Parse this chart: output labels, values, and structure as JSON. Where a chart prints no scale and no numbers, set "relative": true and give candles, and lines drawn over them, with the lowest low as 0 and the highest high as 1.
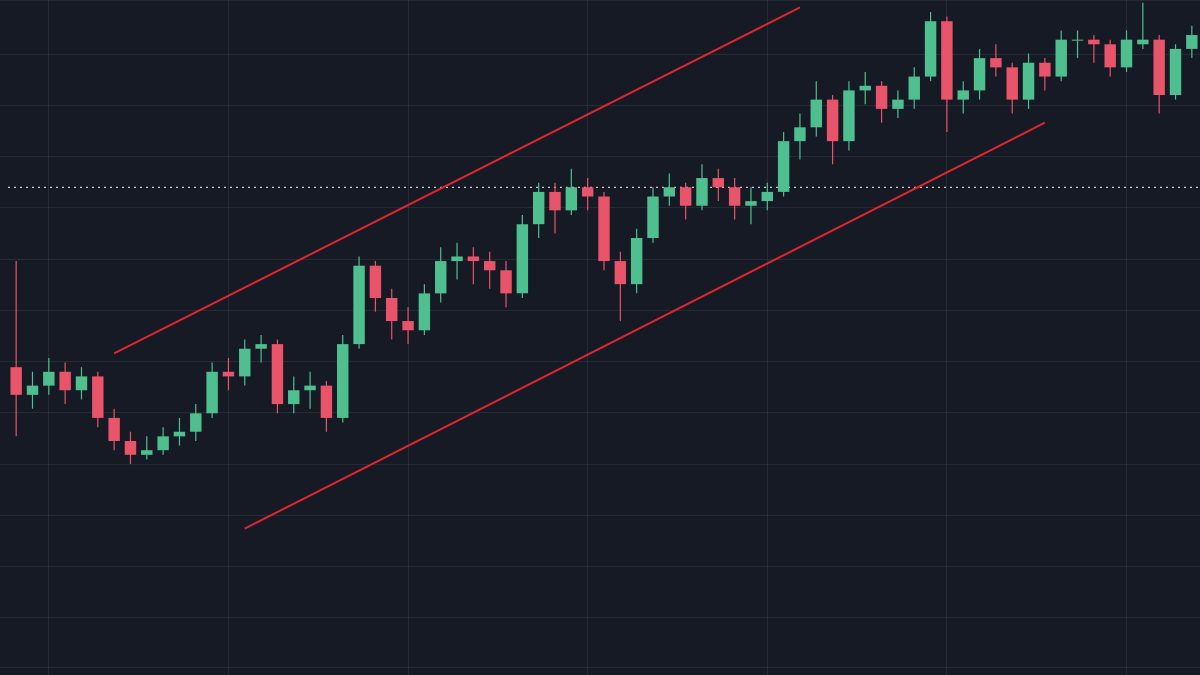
{
  "chart_data": {
    "type": "candlestick",
    "relative": true,
    "grid": true,
    "categories": [
      null,
      null,
      null,
      null,
      null,
      null,
      null,
      null,
      null,
      null,
      null,
      null,
      null,
      null,
      null,
      null,
      null,
      null,
      null,
      null,
      null,
      null,
      null,
      null,
      null,
      null,
      null,
      null,
      null,
      null,
      null,
      null,
      null,
      null,
      null,
      null,
      null,
      null,
      null,
      null,
      null,
      null,
      null,
      null,
      null,
      null,
      null,
      null,
      null,
      null,
      null,
      null,
      null,
      null,
      null,
      null,
      null,
      null,
      null,
      null,
      null,
      null,
      null,
      null,
      null,
      null,
      null,
      null,
      null,
      null,
      null,
      null,
      null
    ],
    "ohlc": [
      [
        0.21,
        0.44,
        0.06,
        0.15
      ],
      [
        0.15,
        0.2,
        0.12,
        0.17
      ],
      [
        0.17,
        0.23,
        0.15,
        0.2
      ],
      [
        0.2,
        0.22,
        0.13,
        0.16
      ],
      [
        0.16,
        0.21,
        0.14,
        0.19
      ],
      [
        0.19,
        0.2,
        0.08,
        0.1
      ],
      [
        0.1,
        0.12,
        0.03,
        0.05
      ],
      [
        0.05,
        0.07,
        0.0,
        0.02
      ],
      [
        0.02,
        0.06,
        0.01,
        0.03
      ],
      [
        0.03,
        0.08,
        0.02,
        0.06
      ],
      [
        0.06,
        0.1,
        0.04,
        0.07
      ],
      [
        0.07,
        0.13,
        0.05,
        0.11
      ],
      [
        0.11,
        0.22,
        0.1,
        0.2
      ],
      [
        0.2,
        0.23,
        0.16,
        0.19
      ],
      [
        0.19,
        0.27,
        0.17,
        0.25
      ],
      [
        0.25,
        0.28,
        0.22,
        0.26
      ],
      [
        0.26,
        0.27,
        0.11,
        0.13
      ],
      [
        0.13,
        0.19,
        0.11,
        0.16
      ],
      [
        0.16,
        0.2,
        0.12,
        0.17
      ],
      [
        0.17,
        0.18,
        0.07,
        0.1
      ],
      [
        0.1,
        0.28,
        0.09,
        0.26
      ],
      [
        0.26,
        0.45,
        0.25,
        0.43
      ],
      [
        0.43,
        0.44,
        0.33,
        0.36
      ],
      [
        0.36,
        0.38,
        0.27,
        0.31
      ],
      [
        0.31,
        0.34,
        0.26,
        0.29
      ],
      [
        0.29,
        0.39,
        0.28,
        0.37
      ],
      [
        0.37,
        0.47,
        0.35,
        0.44
      ],
      [
        0.44,
        0.48,
        0.4,
        0.45
      ],
      [
        0.45,
        0.47,
        0.39,
        0.44
      ],
      [
        0.44,
        0.46,
        0.38,
        0.42
      ],
      [
        0.42,
        0.44,
        0.34,
        0.37
      ],
      [
        0.37,
        0.54,
        0.36,
        0.52
      ],
      [
        0.52,
        0.61,
        0.49,
        0.59
      ],
      [
        0.59,
        0.61,
        0.5,
        0.55
      ],
      [
        0.55,
        0.64,
        0.54,
        0.6
      ],
      [
        0.6,
        0.62,
        0.55,
        0.58
      ],
      [
        0.58,
        0.59,
        0.42,
        0.44
      ],
      [
        0.44,
        0.46,
        0.31,
        0.39
      ],
      [
        0.39,
        0.51,
        0.37,
        0.49
      ],
      [
        0.49,
        0.6,
        0.48,
        0.58
      ],
      [
        0.58,
        0.63,
        0.56,
        0.6
      ],
      [
        0.6,
        0.61,
        0.53,
        0.56
      ],
      [
        0.56,
        0.65,
        0.55,
        0.62
      ],
      [
        0.62,
        0.64,
        0.57,
        0.6
      ],
      [
        0.6,
        0.62,
        0.53,
        0.56
      ],
      [
        0.56,
        0.6,
        0.52,
        0.57
      ],
      [
        0.57,
        0.61,
        0.55,
        0.59
      ],
      [
        0.59,
        0.72,
        0.58,
        0.7
      ],
      [
        0.7,
        0.76,
        0.66,
        0.73
      ],
      [
        0.73,
        0.83,
        0.71,
        0.79
      ],
      [
        0.79,
        0.8,
        0.65,
        0.7
      ],
      [
        0.7,
        0.83,
        0.68,
        0.81
      ],
      [
        0.81,
        0.85,
        0.78,
        0.82
      ],
      [
        0.82,
        0.83,
        0.74,
        0.77
      ],
      [
        0.77,
        0.81,
        0.75,
        0.79
      ],
      [
        0.79,
        0.86,
        0.77,
        0.84
      ],
      [
        0.84,
        0.98,
        0.83,
        0.96
      ],
      [
        0.96,
        0.97,
        0.72,
        0.79
      ],
      [
        0.79,
        0.83,
        0.76,
        0.81
      ],
      [
        0.81,
        0.9,
        0.79,
        0.88
      ],
      [
        0.88,
        0.91,
        0.84,
        0.86
      ],
      [
        0.86,
        0.87,
        0.76,
        0.79
      ],
      [
        0.79,
        0.89,
        0.77,
        0.87
      ],
      [
        0.87,
        0.88,
        0.81,
        0.84
      ],
      [
        0.84,
        0.94,
        0.83,
        0.92
      ],
      [
        0.92,
        0.94,
        0.88,
        0.92
      ],
      [
        0.92,
        0.93,
        0.87,
        0.91
      ],
      [
        0.91,
        0.92,
        0.84,
        0.86
      ],
      [
        0.86,
        0.94,
        0.85,
        0.92
      ],
      [
        0.91,
        1.0,
        0.9,
        0.92
      ],
      [
        0.92,
        0.93,
        0.76,
        0.8
      ],
      [
        0.8,
        0.91,
        0.79,
        0.9
      ],
      [
        0.9,
        0.95,
        0.88,
        0.93
      ]
    ],
    "colors": [
      "#e8546a",
      "#4fbf8f",
      "#4fbf8f",
      "#e8546a",
      "#4fbf8f",
      "#e8546a",
      "#e8546a",
      "#e8546a",
      "#4fbf8f",
      "#4fbf8f",
      "#4fbf8f",
      "#4fbf8f",
      "#4fbf8f",
      "#e8546a",
      "#4fbf8f",
      "#4fbf8f",
      "#e8546a",
      "#4fbf8f",
      "#4fbf8f",
      "#e8546a",
      "#4fbf8f",
      "#4fbf8f",
      "#e8546a",
      "#e8546a",
      "#e8546a",
      "#4fbf8f",
      "#4fbf8f",
      "#4fbf8f",
      "#e8546a",
      "#e8546a",
      "#e8546a",
      "#4fbf8f",
      "#4fbf8f",
      "#e8546a",
      "#4fbf8f",
      "#e8546a",
      "#e8546a",
      "#e8546a",
      "#4fbf8f",
      "#4fbf8f",
      "#4fbf8f",
      "#e8546a",
      "#4fbf8f",
      "#e8546a",
      "#e8546a",
      "#4fbf8f",
      "#4fbf8f",
      "#4fbf8f",
      "#4fbf8f",
      "#4fbf8f",
      "#e8546a",
      "#4fbf8f",
      "#4fbf8f",
      "#e8546a",
      "#4fbf8f",
      "#4fbf8f",
      "#4fbf8f",
      "#e8546a",
      "#4fbf8f",
      "#4fbf8f",
      "#e8546a",
      "#e8546a",
      "#4fbf8f",
      "#e8546a",
      "#4fbf8f",
      "#4fbf8f",
      "#e8546a",
      "#e8546a",
      "#4fbf8f",
      "#4fbf8f",
      "#e8546a",
      "#4fbf8f",
      "#4fbf8f"
    ],
    "series": [
      {
        "type": "line",
        "color": "#e0262f",
        "values": [
          null,
          null,
          null,
          null,
          null,
          null,
          0.24,
          null,
          null,
          null,
          null,
          null,
          null,
          null,
          null,
          null,
          null,
          null,
          null,
          null,
          null,
          null,
          null,
          null,
          null,
          null,
          null,
          null,
          null,
          null,
          null,
          null,
          null,
          null,
          null,
          null,
          null,
          null,
          null,
          null,
          null,
          null,
          null,
          null,
          null,
          null,
          null,
          null,
          0.99,
          null,
          null,
          null,
          null,
          null,
          null,
          null,
          null,
          null,
          null,
          null,
          null,
          null,
          null,
          null,
          null,
          null,
          null,
          null,
          null,
          null,
          null,
          null,
          null
        ]
      },
      {
        "type": "line",
        "color": "#e0262f",
        "values": [
          null,
          null,
          null,
          null,
          null,
          null,
          null,
          null,
          null,
          null,
          null,
          null,
          null,
          null,
          -0.14,
          null,
          null,
          null,
          null,
          null,
          null,
          null,
          null,
          null,
          null,
          null,
          null,
          null,
          null,
          null,
          null,
          null,
          null,
          null,
          null,
          null,
          null,
          null,
          null,
          null,
          null,
          null,
          null,
          null,
          null,
          null,
          null,
          null,
          null,
          null,
          null,
          null,
          null,
          null,
          null,
          null,
          null,
          null,
          null,
          null,
          null,
          null,
          null,
          0.74,
          null,
          null,
          null,
          null,
          null,
          null,
          null,
          null,
          null
        ]
      }
    ],
    "ref_lines": [
      {
        "axis": "y",
        "value": 0.6,
        "color": "#c8ccd4",
        "line_style": "dotted"
      }
    ]
  }
}
